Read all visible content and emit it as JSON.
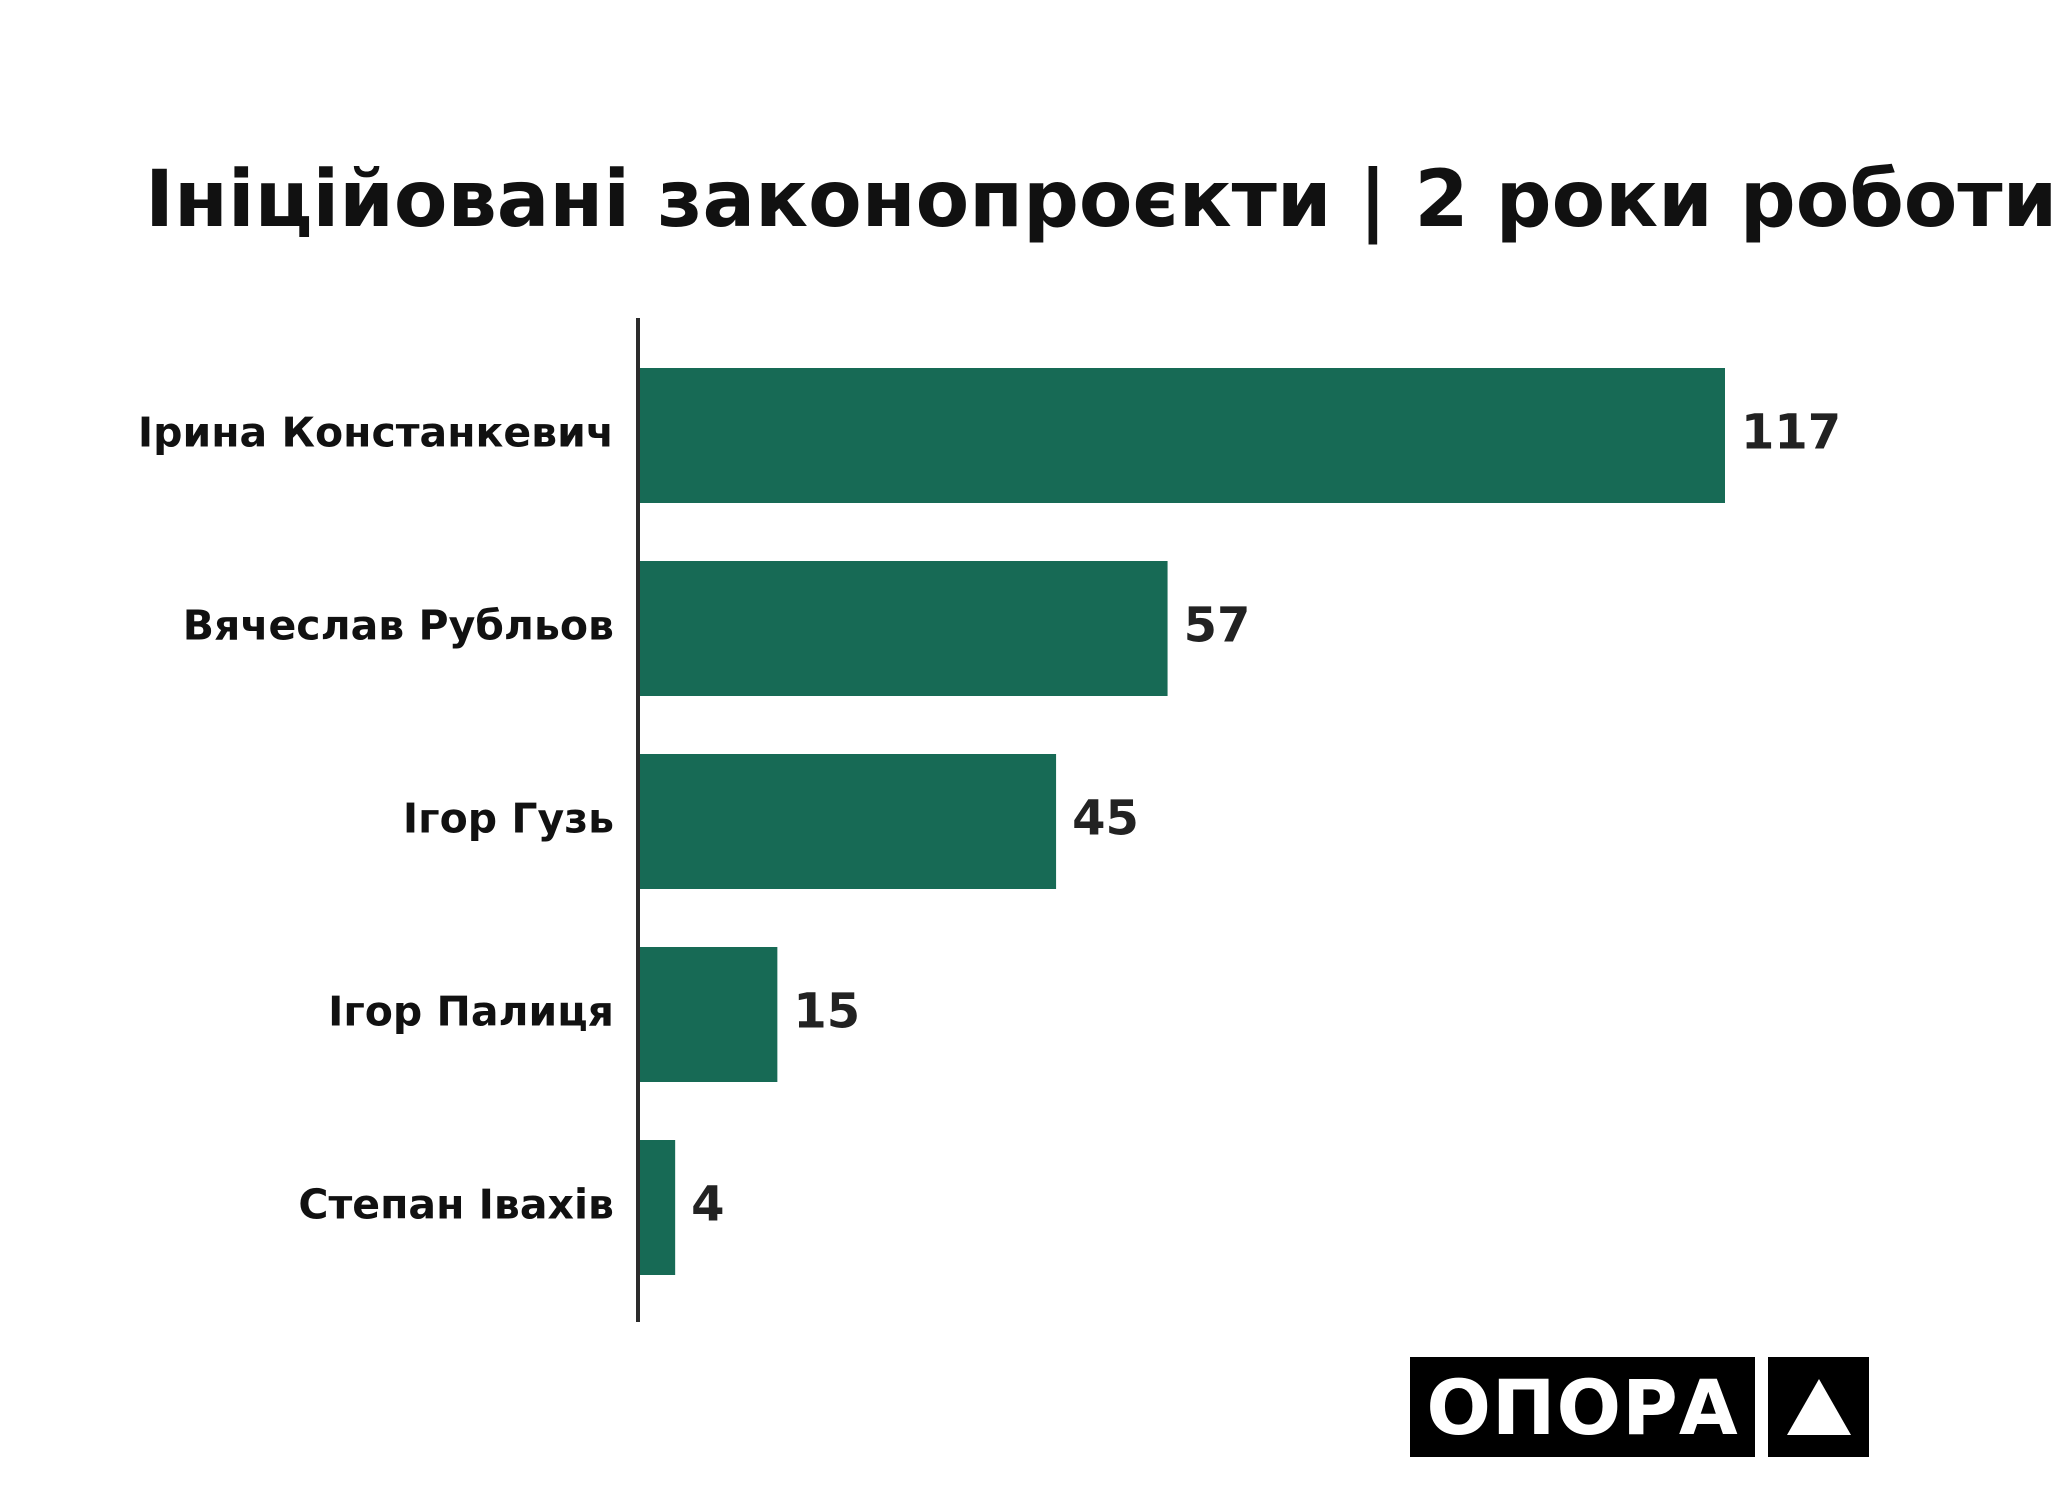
{
  "chart_data": {
    "type": "bar",
    "orientation": "horizontal",
    "title": "Ініційовані законопроєкти | 2 роки роботи",
    "categories": [
      "Ірина Констанкевич",
      "Вячеслав Рубльов",
      "Ігор Гузь",
      "Ігор Палиця",
      "Степан Івахів"
    ],
    "values": [
      117,
      57,
      45,
      15,
      4
    ],
    "xlim": [
      0,
      117
    ],
    "grid": false,
    "bar_color": "#176a55",
    "axis_color": "#2b2b2b"
  },
  "logo": {
    "text": "ОПОРА"
  }
}
